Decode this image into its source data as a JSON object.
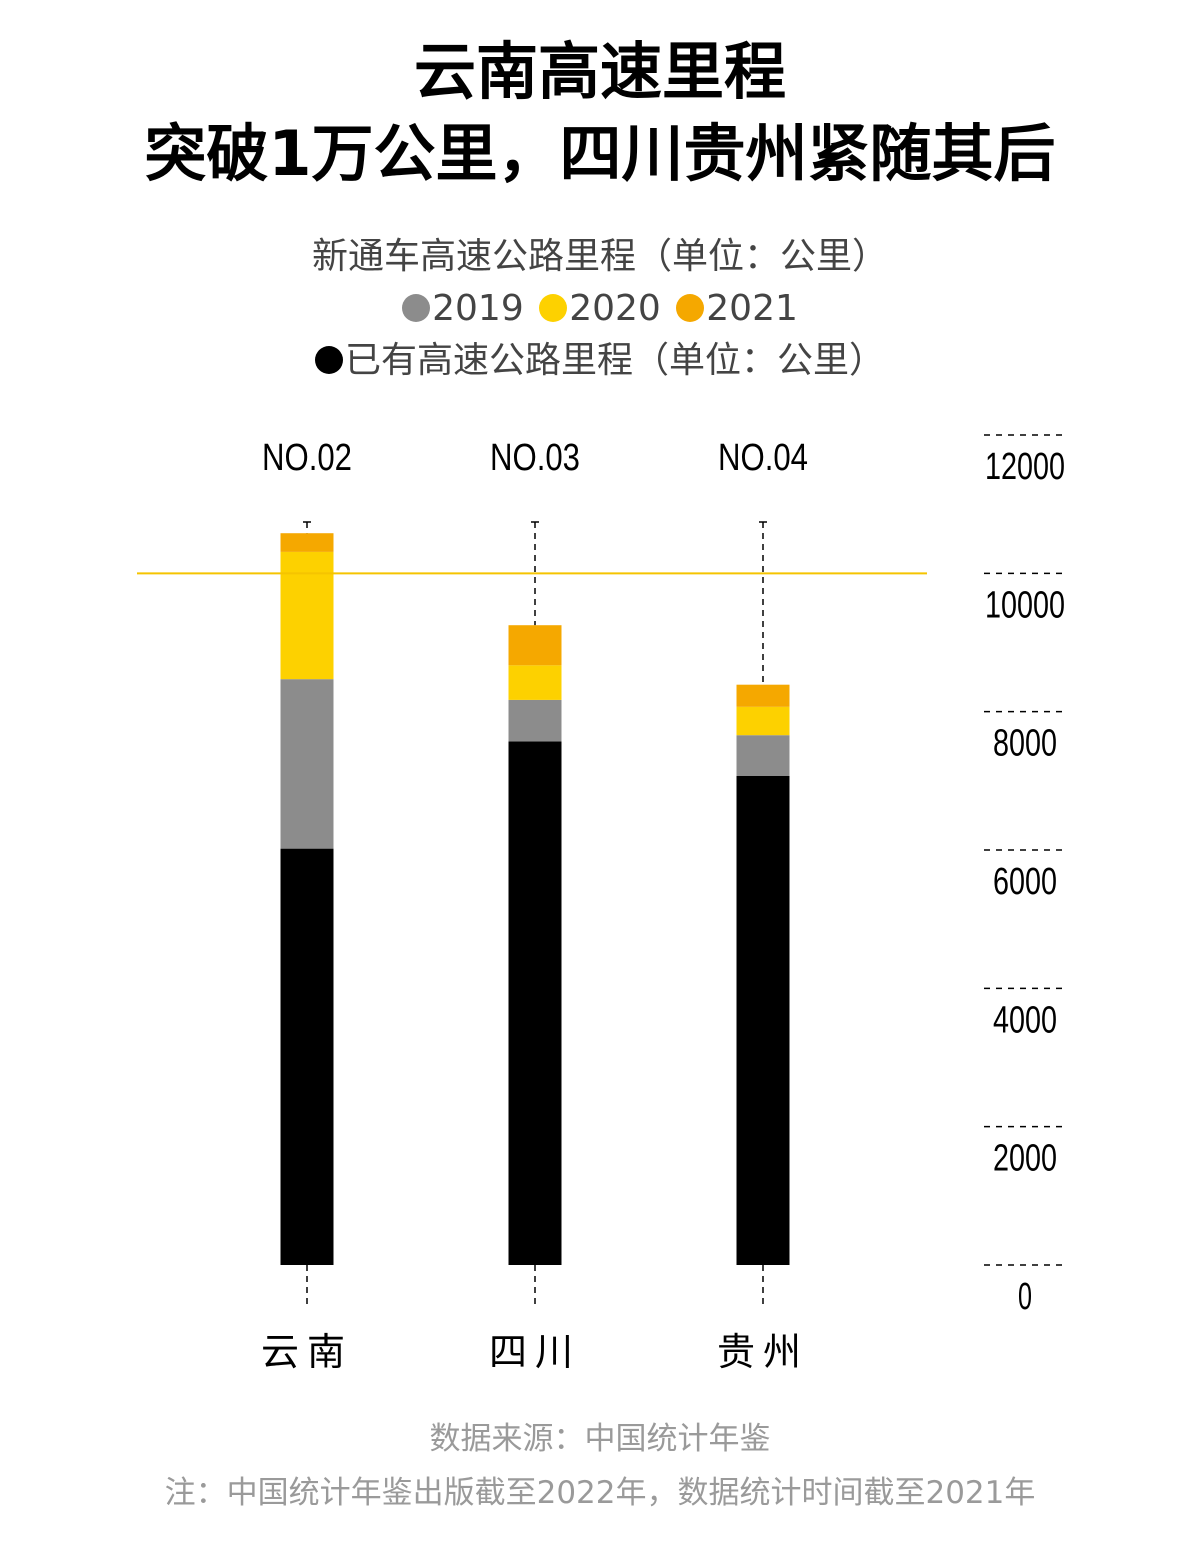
{
  "header": {
    "title_line1": "云南高速里程",
    "title_line2": "突破1万公里，四川贵州紧随其后",
    "subtitle1": "新通车高速公路里程（单位：公里）",
    "subtitle2": "已有高速公路里程（单位：公里）"
  },
  "legend": [
    {
      "label": "2019",
      "color": "#8c8c8c"
    },
    {
      "label": "2020",
      "color": "#fdd100"
    },
    {
      "label": "2021",
      "color": "#f5a800"
    }
  ],
  "legend_existing": {
    "label": "已有高速公路里程（单位：公里）",
    "color": "#000000"
  },
  "chart_data": {
    "type": "bar",
    "stacked": true,
    "categories": [
      "云南",
      "四川",
      "贵州"
    ],
    "rank_labels": [
      "NO.02",
      "NO.03",
      "NO.04"
    ],
    "series": [
      {
        "name": "已有高速公路里程",
        "color": "#000000",
        "values": [
          6020,
          7570,
          7070
        ]
      },
      {
        "name": "2019",
        "color": "#8c8c8c",
        "values": [
          2450,
          600,
          590
        ]
      },
      {
        "name": "2020",
        "color": "#fdd100",
        "values": [
          1840,
          500,
          410
        ]
      },
      {
        "name": "2021",
        "color": "#f5a800",
        "values": [
          270,
          580,
          320
        ]
      }
    ],
    "ylim": [
      0,
      12000
    ],
    "yticks": [
      0,
      2000,
      4000,
      6000,
      8000,
      10000,
      12000
    ],
    "reference_line": {
      "value": 10000,
      "color": "#f5c400"
    },
    "accent_color": "#f5c400"
  },
  "footer": {
    "source": "数据来源：中国统计年鉴",
    "note": "注：中国统计年鉴出版截至2022年，数据统计时间截至2021年"
  }
}
